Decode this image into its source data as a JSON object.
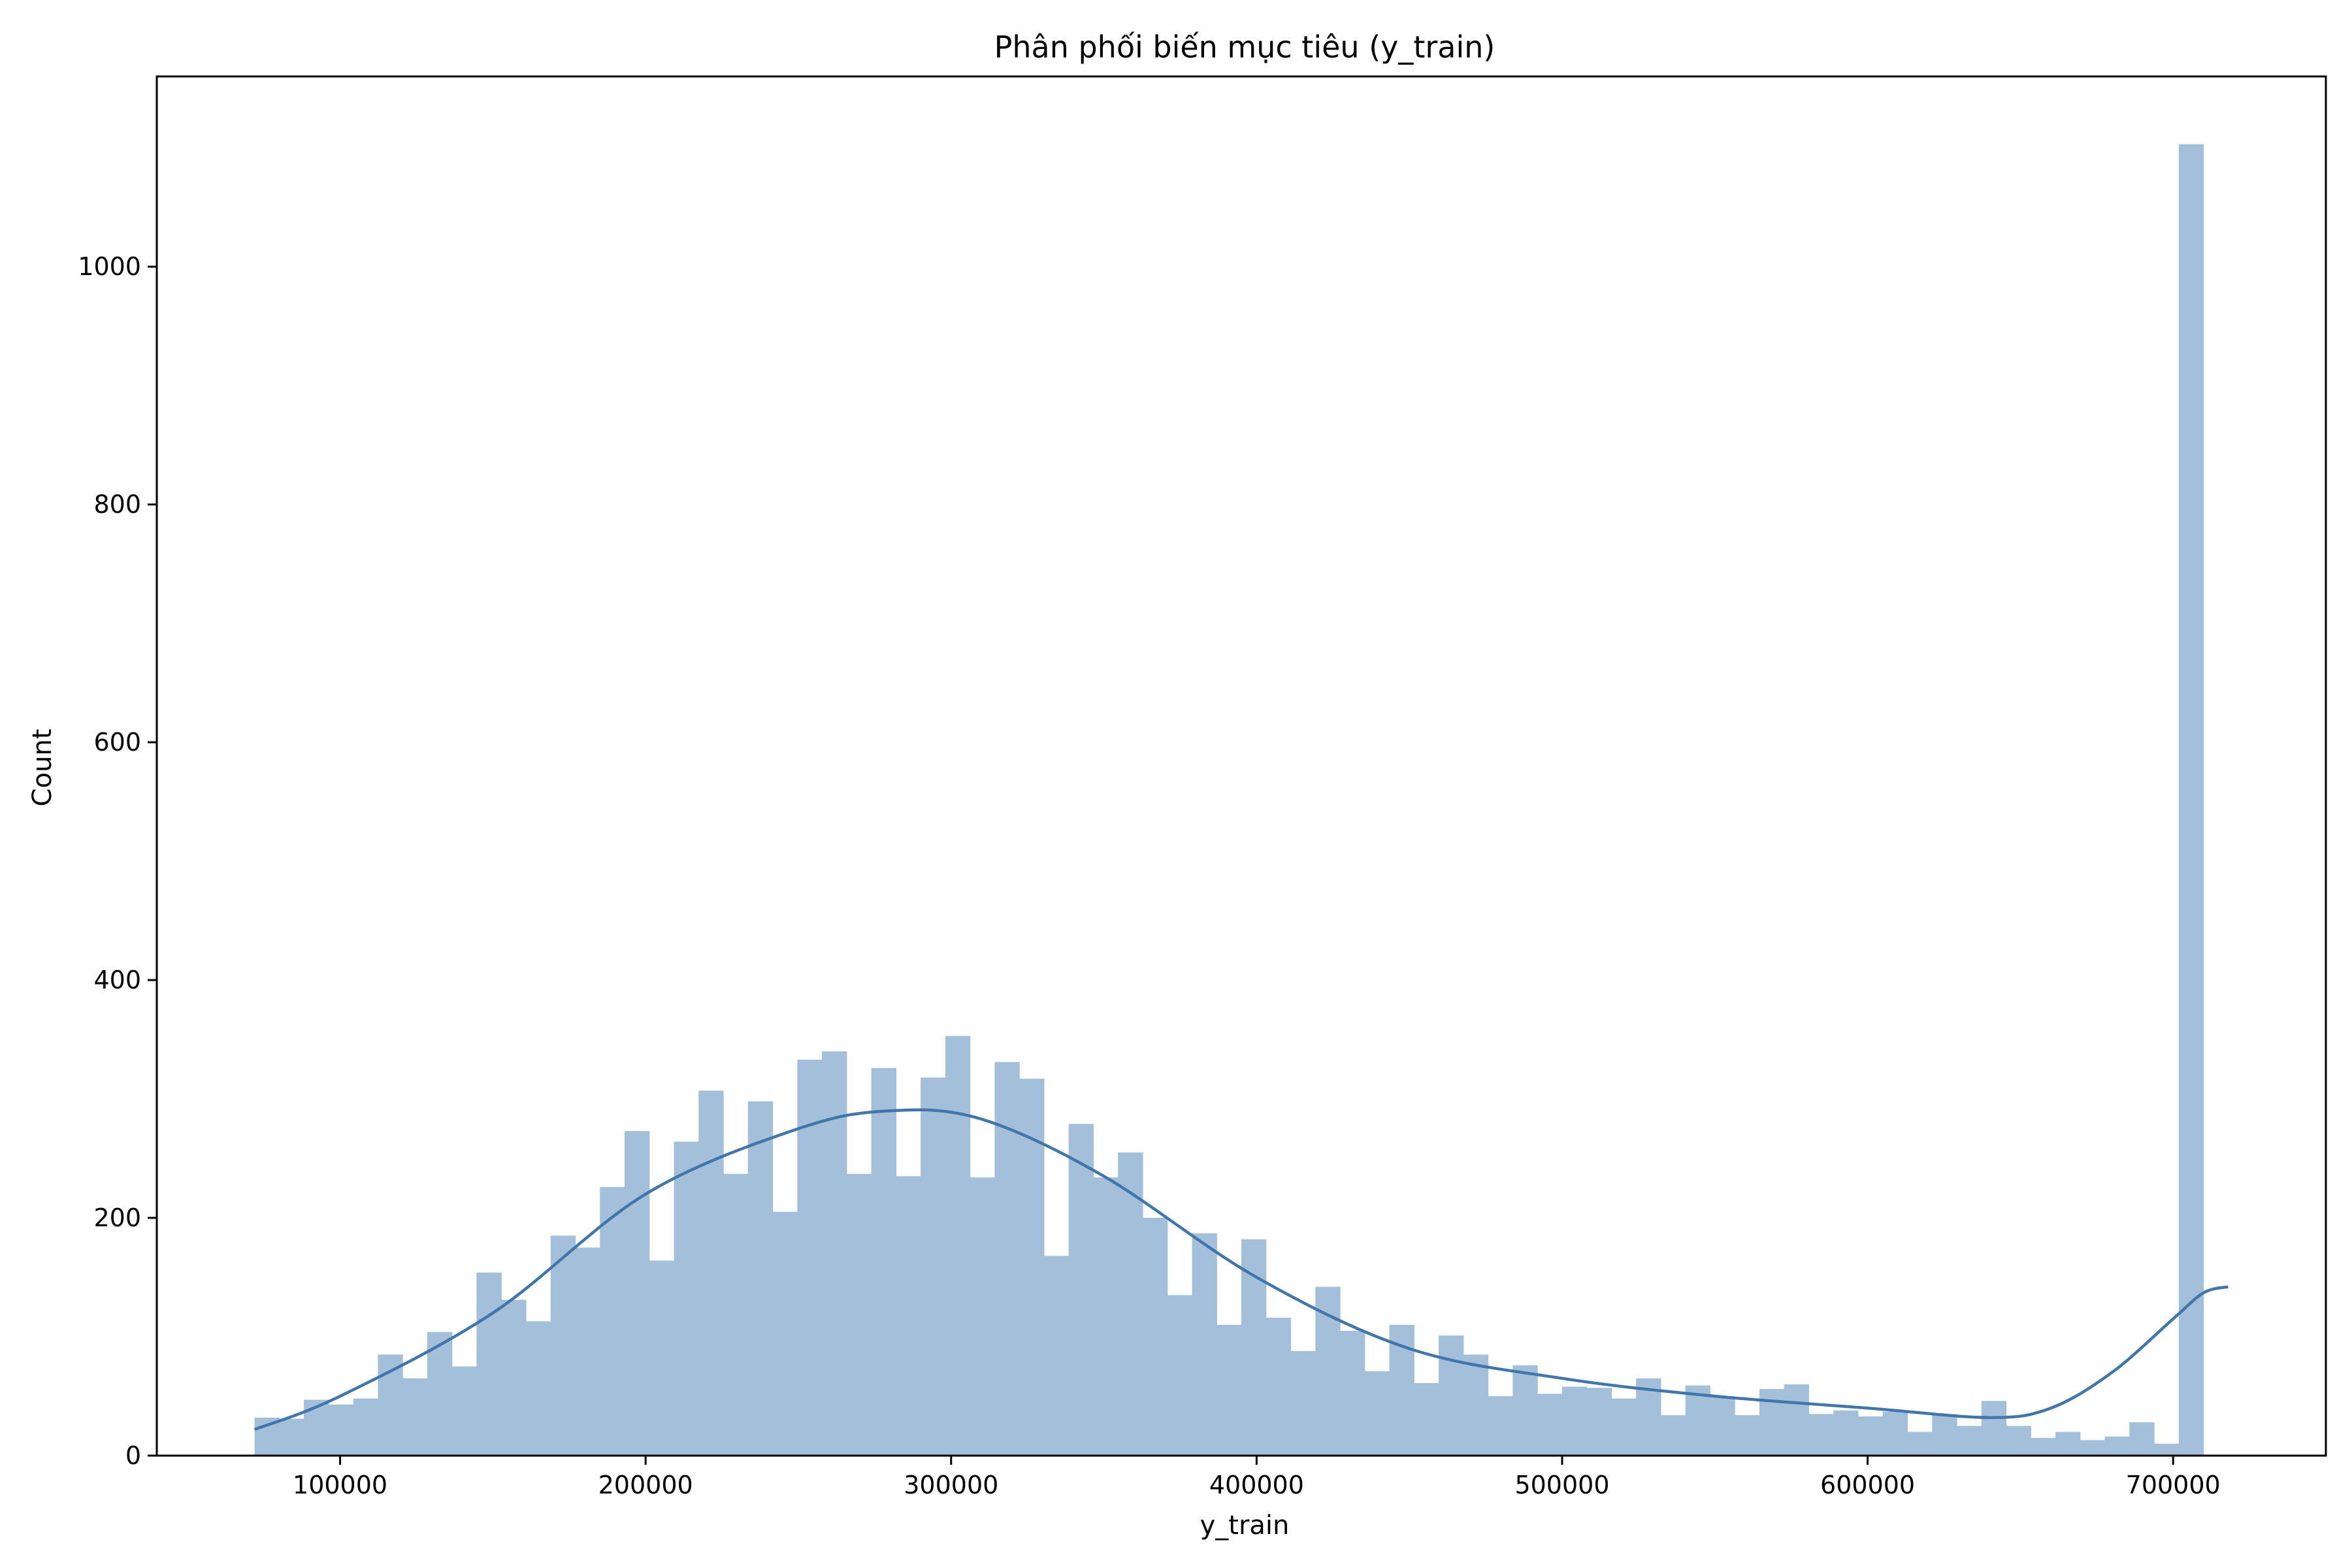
{
  "chart_data": {
    "type": "bar",
    "subtype": "histogram_with_kde",
    "title": "Phân phối biến mục tiêu (y_train)",
    "xlabel": "y_train",
    "ylabel": "Count",
    "xlim": [
      40000,
      750000
    ],
    "ylim": [
      0,
      1160
    ],
    "xticks": [
      100000,
      200000,
      300000,
      400000,
      500000,
      600000,
      700000
    ],
    "xtick_labels": [
      "100000",
      "200000",
      "300000",
      "400000",
      "500000",
      "600000",
      "700000"
    ],
    "yticks": [
      0,
      200,
      400,
      600,
      800,
      1000
    ],
    "ytick_labels": [
      "0",
      "200",
      "400",
      "600",
      "800",
      "1000"
    ],
    "grid": false,
    "bin_start": 72000,
    "bin_end": 718000,
    "bins": 80,
    "counts": [
      32,
      31,
      47,
      43,
      48,
      85,
      65,
      104,
      75,
      154,
      131,
      113,
      185,
      175,
      226,
      273,
      164,
      264,
      307,
      237,
      298,
      205,
      333,
      340,
      237,
      326,
      235,
      318,
      353,
      234,
      331,
      317,
      168,
      279,
      234,
      255,
      200,
      135,
      187,
      110,
      182,
      116,
      88,
      142,
      105,
      71,
      110,
      61,
      101,
      85,
      50,
      76,
      52,
      58,
      57,
      48,
      65,
      34,
      59,
      50,
      34,
      56,
      60,
      35,
      38,
      33,
      37,
      20,
      35,
      25,
      46,
      25,
      15,
      20,
      13,
      16,
      28,
      10,
      1103,
      0
    ],
    "kde": {
      "x": [
        72000,
        100000,
        150000,
        200000,
        250000,
        280000,
        310000,
        350000,
        400000,
        450000,
        500000,
        550000,
        600000,
        640000,
        660000,
        680000,
        700000,
        710000,
        718000
      ],
      "y": [
        22,
        50,
        120,
        220,
        275,
        290,
        283,
        235,
        150,
        90,
        65,
        50,
        40,
        32,
        40,
        70,
        115,
        137,
        142
      ]
    },
    "colors": {
      "bars": "#a3bfd9",
      "kde": "#4076ab",
      "axes": "#000000"
    }
  }
}
